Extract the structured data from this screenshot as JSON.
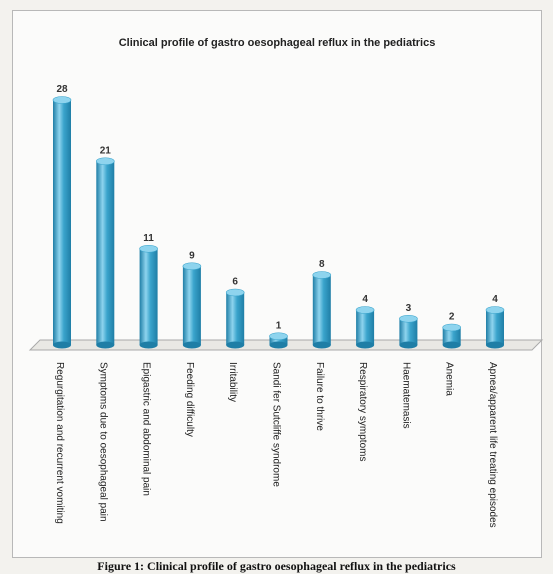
{
  "chart_data": {
    "type": "bar",
    "title": "Clinical profile of gastro oesophageal reflux in the pediatrics",
    "categories": [
      "Regurgitation and recurrent vomiting",
      "Symptoms due to oesophageal pain",
      "Epigastric and abdominal pain",
      "Feeding difficulty",
      "Irritability",
      "Sandi fer Sutcliffe syndrome",
      "Failure to thrive",
      "Respiratory symptoms",
      "Haematemasis",
      "Anemia",
      "Apnea/apparent life treating episodes"
    ],
    "values": [
      28,
      21,
      11,
      9,
      6,
      1,
      8,
      4,
      3,
      2,
      4
    ],
    "ylim": [
      0,
      28
    ],
    "grid": false,
    "legend": "none",
    "bar_color": "#3aa4cc",
    "bar_dark": "#1f7ea6",
    "bar_light": "#8ed4ee"
  },
  "caption": "Figure 1: Clinical profile of gastro oesophageal reflux in the pediatrics"
}
